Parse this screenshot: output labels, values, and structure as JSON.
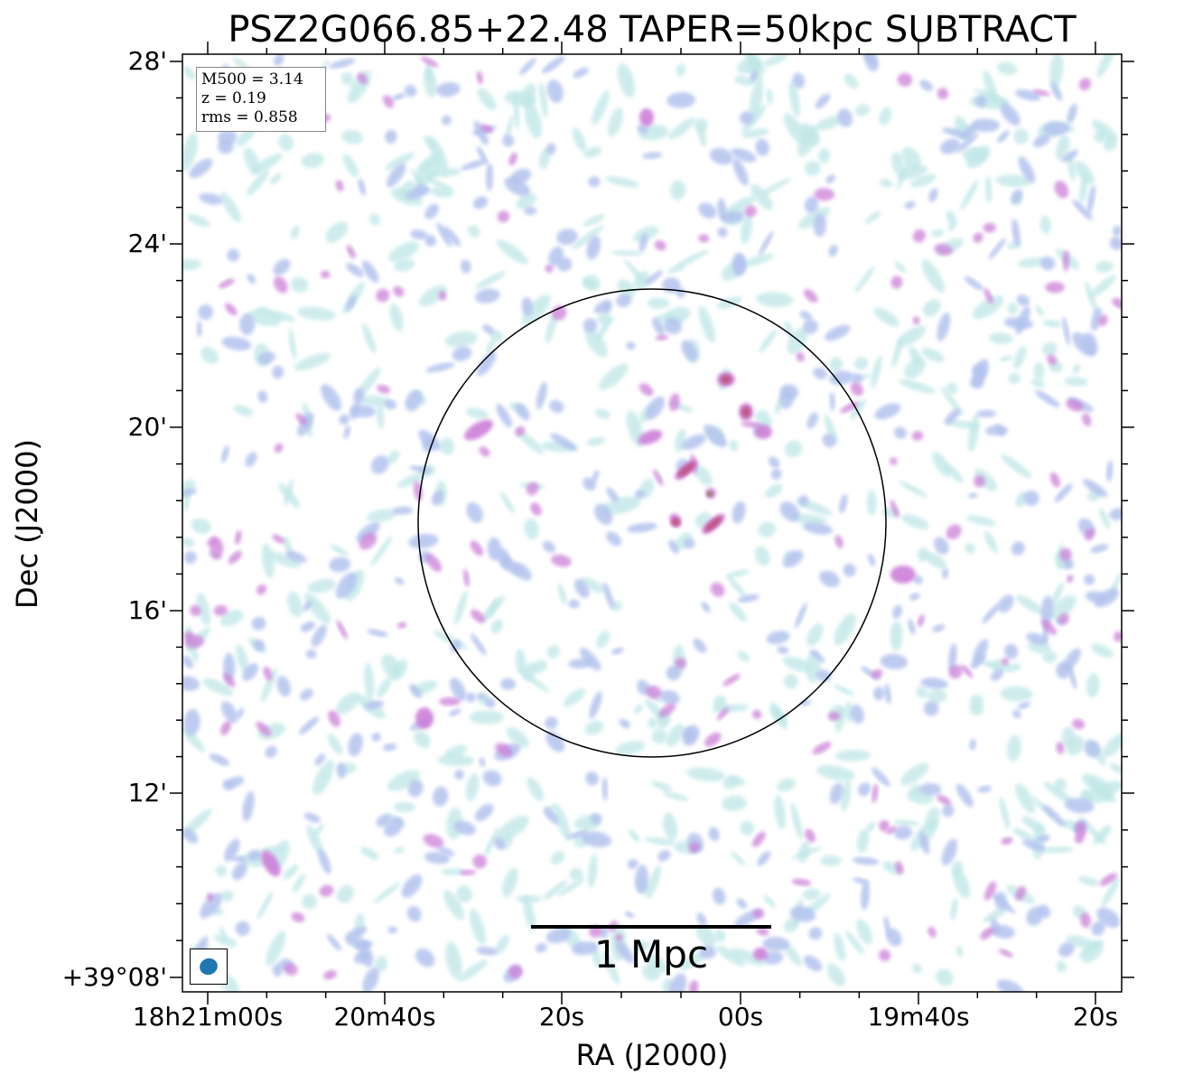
{
  "title": "PSZ2G066.85+22.48 TAPER=50kpc SUBTRACT",
  "info": {
    "m500": "M500 = 3.14",
    "z": "z = 0.19",
    "rms": "rms = 0.858"
  },
  "scalebar_label": "1 Mpc",
  "axes": {
    "xlabel": "RA (J2000)",
    "ylabel": "Dec (J2000)",
    "yticks": [
      "28'",
      "24'",
      "20'",
      "16'",
      "12'",
      "+39°08'"
    ],
    "xticks": [
      "18h21m00s",
      "20m40s",
      "20s",
      "00s",
      "19m40s",
      "20s"
    ]
  },
  "colors": {
    "faint": "#bfe6e6",
    "low": "#b3c3ee",
    "mid": "#cc7fd8",
    "high": "#c0507e",
    "peak": "#7a7a2e",
    "beam": "#1f77b4"
  }
}
